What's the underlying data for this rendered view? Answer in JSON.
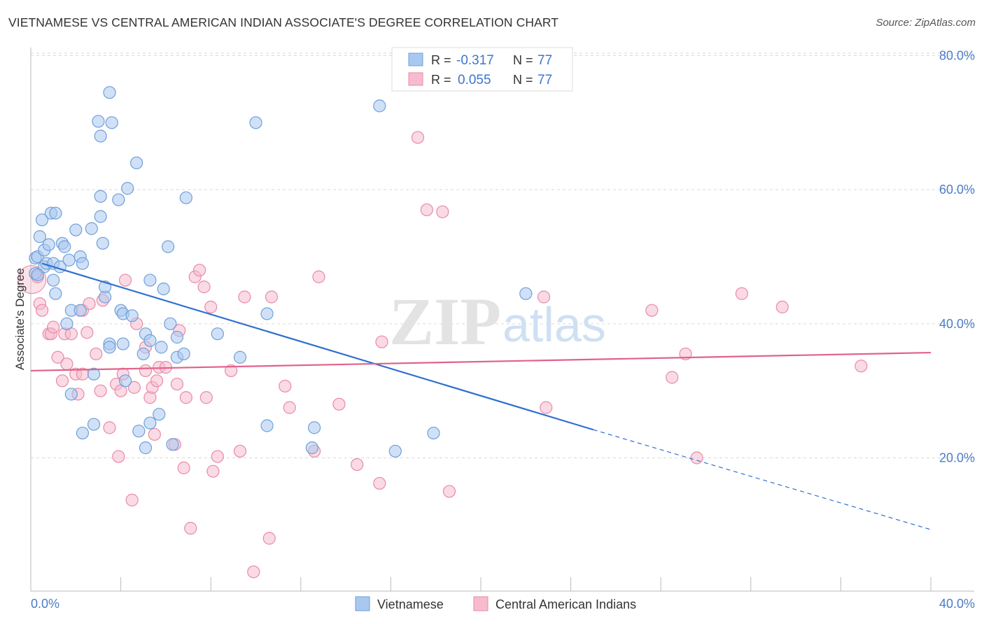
{
  "header": {
    "title": "VIETNAMESE VS CENTRAL AMERICAN INDIAN ASSOCIATE'S DEGREE CORRELATION CHART",
    "source": "Source: ZipAtlas.com"
  },
  "watermark": {
    "zip": "ZIP",
    "atlas": "atlas"
  },
  "stats": [
    {
      "r_label": "R = ",
      "r_value": "-0.317",
      "n_label": "N = ",
      "n_value": "77"
    },
    {
      "r_label": "R = ",
      "r_value": "0.055",
      "n_label": "N = ",
      "n_value": "77"
    }
  ],
  "colors": {
    "vietnamese_fill": "#a9c8f0",
    "vietnamese_stroke": "#6f9fd8",
    "vietnamese_line": "#2f6fd0",
    "cai_fill": "#f6bccd",
    "cai_stroke": "#e88aa7",
    "cai_line": "#e0628a",
    "axis_text": "#4a7cc7",
    "grid": "#d9d9d9"
  },
  "chart_data": {
    "type": "scatter",
    "title": "VIETNAMESE VS CENTRAL AMERICAN INDIAN ASSOCIATE'S DEGREE CORRELATION CHART",
    "xlabel": "",
    "ylabel": "Associate's Degree",
    "xlim": [
      0,
      40
    ],
    "ylim": [
      0,
      83
    ],
    "x_tick_labels": [
      "0.0%",
      "40.0%"
    ],
    "y_ticks": [
      20,
      40,
      60,
      80
    ],
    "y_tick_labels": [
      "20.0%",
      "40.0%",
      "60.0%",
      "80.0%"
    ],
    "grid": "horizontal dashed",
    "legend_position": "bottom",
    "series": [
      {
        "name": "Vietnamese",
        "r": -0.317,
        "n": 77,
        "trend": {
          "x0": 0.5,
          "y0": 49,
          "x1": 25,
          "y1": 24.2,
          "dash_to_x": 40,
          "dash_to_y": 9.3
        },
        "points": [
          [
            0.2,
            47.5
          ],
          [
            0.2,
            49.8
          ],
          [
            0.3,
            50.0
          ],
          [
            0.4,
            53.0
          ],
          [
            0.5,
            55.5
          ],
          [
            0.6,
            48.5
          ],
          [
            0.6,
            51.0
          ],
          [
            0.7,
            49.0
          ],
          [
            0.8,
            51.8
          ],
          [
            0.9,
            56.5
          ],
          [
            1.0,
            49.0
          ],
          [
            1.0,
            46.5
          ],
          [
            1.1,
            44.5
          ],
          [
            1.1,
            56.5
          ],
          [
            1.3,
            48.5
          ],
          [
            1.4,
            52.0
          ],
          [
            1.5,
            51.5
          ],
          [
            1.6,
            40.0
          ],
          [
            1.7,
            49.5
          ],
          [
            1.8,
            42.0
          ],
          [
            1.8,
            29.5
          ],
          [
            2.0,
            54.0
          ],
          [
            2.2,
            50.0
          ],
          [
            2.2,
            42.0
          ],
          [
            2.3,
            49.0
          ],
          [
            2.3,
            23.7
          ],
          [
            2.7,
            54.2
          ],
          [
            2.8,
            32.5
          ],
          [
            2.8,
            25.0
          ],
          [
            3.1,
            59.0
          ],
          [
            3.1,
            68.0
          ],
          [
            3.1,
            56.0
          ],
          [
            3.2,
            52.0
          ],
          [
            3.3,
            44.0
          ],
          [
            3.3,
            45.5
          ],
          [
            3.5,
            37.0
          ],
          [
            3.5,
            36.5
          ],
          [
            3.5,
            74.5
          ],
          [
            3.6,
            70.0
          ],
          [
            3.9,
            58.5
          ],
          [
            4.0,
            42.0
          ],
          [
            4.1,
            41.5
          ],
          [
            4.1,
            37.0
          ],
          [
            4.2,
            31.5
          ],
          [
            4.3,
            60.2
          ],
          [
            4.5,
            41.2
          ],
          [
            4.7,
            64.0
          ],
          [
            4.8,
            24.0
          ],
          [
            5.0,
            35.5
          ],
          [
            5.1,
            38.5
          ],
          [
            5.1,
            21.5
          ],
          [
            5.3,
            37.5
          ],
          [
            5.3,
            25.2
          ],
          [
            5.3,
            46.5
          ],
          [
            5.7,
            26.5
          ],
          [
            5.8,
            36.5
          ],
          [
            5.9,
            45.2
          ],
          [
            6.1,
            51.5
          ],
          [
            6.2,
            40.0
          ],
          [
            6.3,
            22.0
          ],
          [
            6.5,
            35.0
          ],
          [
            6.5,
            38.0
          ],
          [
            6.8,
            35.5
          ],
          [
            6.9,
            58.8
          ],
          [
            8.3,
            38.5
          ],
          [
            9.3,
            35.0
          ],
          [
            10.0,
            70.0
          ],
          [
            10.5,
            41.5
          ],
          [
            10.5,
            24.8
          ],
          [
            12.5,
            21.5
          ],
          [
            12.6,
            24.5
          ],
          [
            15.5,
            72.5
          ],
          [
            16.2,
            21.0
          ],
          [
            17.9,
            23.7
          ],
          [
            22.0,
            44.5
          ],
          [
            3.0,
            70.2
          ],
          [
            0.3,
            47.3
          ]
        ]
      },
      {
        "name": "Central American Indians",
        "r": 0.055,
        "n": 77,
        "trend": {
          "x0": 0,
          "y0": 33.0,
          "x1": 40,
          "y1": 35.7
        },
        "points": [
          [
            0.3,
            47.0
          ],
          [
            0.4,
            43.0
          ],
          [
            0.5,
            42.0
          ],
          [
            0.8,
            38.5
          ],
          [
            0.9,
            38.5
          ],
          [
            1.0,
            39.5
          ],
          [
            1.2,
            35.0
          ],
          [
            1.4,
            31.5
          ],
          [
            1.5,
            38.5
          ],
          [
            1.6,
            34.0
          ],
          [
            1.8,
            38.5
          ],
          [
            2.0,
            32.5
          ],
          [
            2.1,
            29.5
          ],
          [
            2.3,
            32.5
          ],
          [
            2.3,
            42.0
          ],
          [
            2.5,
            38.7
          ],
          [
            2.6,
            43.0
          ],
          [
            2.9,
            35.5
          ],
          [
            3.1,
            30.0
          ],
          [
            3.2,
            43.5
          ],
          [
            3.5,
            24.5
          ],
          [
            3.8,
            31.0
          ],
          [
            3.9,
            20.2
          ],
          [
            4.0,
            30.0
          ],
          [
            4.1,
            32.5
          ],
          [
            4.2,
            46.5
          ],
          [
            4.5,
            13.7
          ],
          [
            4.6,
            30.5
          ],
          [
            4.7,
            40.0
          ],
          [
            5.1,
            36.5
          ],
          [
            5.1,
            33.0
          ],
          [
            5.3,
            29.0
          ],
          [
            5.4,
            30.5
          ],
          [
            5.5,
            23.5
          ],
          [
            5.6,
            31.5
          ],
          [
            5.7,
            33.5
          ],
          [
            6.0,
            33.5
          ],
          [
            6.4,
            22.0
          ],
          [
            6.5,
            31.0
          ],
          [
            6.6,
            39.0
          ],
          [
            6.8,
            18.5
          ],
          [
            6.9,
            29.0
          ],
          [
            7.1,
            9.5
          ],
          [
            7.3,
            47.0
          ],
          [
            7.5,
            48.0
          ],
          [
            7.7,
            45.5
          ],
          [
            7.8,
            29.0
          ],
          [
            8.0,
            42.5
          ],
          [
            8.1,
            18.0
          ],
          [
            8.3,
            20.2
          ],
          [
            8.9,
            33.0
          ],
          [
            9.3,
            21.0
          ],
          [
            9.5,
            44.0
          ],
          [
            9.9,
            3.0
          ],
          [
            10.6,
            8.0
          ],
          [
            10.7,
            44.0
          ],
          [
            11.3,
            30.7
          ],
          [
            11.5,
            27.5
          ],
          [
            12.6,
            21.0
          ],
          [
            12.8,
            47.0
          ],
          [
            13.7,
            28.0
          ],
          [
            14.5,
            19.0
          ],
          [
            15.5,
            16.2
          ],
          [
            15.6,
            37.3
          ],
          [
            17.2,
            67.8
          ],
          [
            17.6,
            57.0
          ],
          [
            18.3,
            56.7
          ],
          [
            18.6,
            15.0
          ],
          [
            22.8,
            44.0
          ],
          [
            22.9,
            27.5
          ],
          [
            27.6,
            42.0
          ],
          [
            28.5,
            32.0
          ],
          [
            29.1,
            35.5
          ],
          [
            29.6,
            20.0
          ],
          [
            31.6,
            44.5
          ],
          [
            33.4,
            42.5
          ],
          [
            36.9,
            33.7
          ]
        ]
      }
    ]
  }
}
